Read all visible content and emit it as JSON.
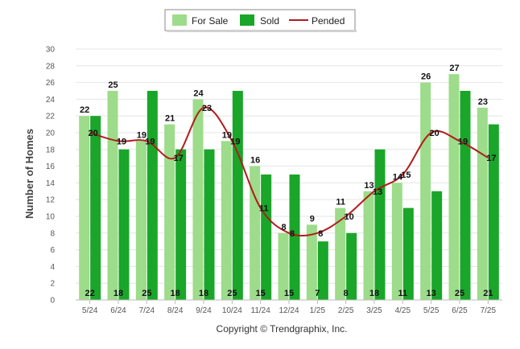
{
  "legend": {
    "for_sale": "For Sale",
    "sold": "Sold",
    "pended": "Pended"
  },
  "copyright": "Copyright © Trendgraphix, Inc.",
  "colors": {
    "for_sale": "#9ddc8a",
    "sold": "#1aa629",
    "pended": "#b01c1c",
    "grid": "#e5e5e5",
    "axis": "#bbbbbb"
  },
  "chart_data": {
    "type": "bar",
    "title": "",
    "xlabel": "",
    "ylabel": "Number of Homes",
    "ylim": [
      0,
      30
    ],
    "yticks": [
      0,
      2,
      4,
      6,
      8,
      10,
      12,
      14,
      16,
      18,
      20,
      22,
      24,
      26,
      28,
      30
    ],
    "grid": true,
    "legend_position": "top-center",
    "categories": [
      "5/24",
      "6/24",
      "7/24",
      "8/24",
      "9/24",
      "10/24",
      "11/24",
      "12/24",
      "1/25",
      "2/25",
      "3/25",
      "4/25",
      "5/25",
      "6/25",
      "7/25"
    ],
    "series": [
      {
        "name": "For Sale",
        "type": "bar",
        "values": [
          22,
          25,
          19,
          21,
          24,
          19,
          16,
          8,
          9,
          11,
          13,
          14,
          26,
          27,
          23
        ]
      },
      {
        "name": "Sold",
        "type": "bar",
        "values": [
          22,
          18,
          25,
          18,
          18,
          25,
          15,
          15,
          7,
          8,
          18,
          11,
          13,
          25,
          21
        ]
      },
      {
        "name": "Pended",
        "type": "line",
        "values": [
          20,
          19,
          19,
          17,
          23,
          19,
          11,
          8,
          8,
          10,
          13,
          15,
          20,
          19,
          17
        ]
      }
    ]
  }
}
